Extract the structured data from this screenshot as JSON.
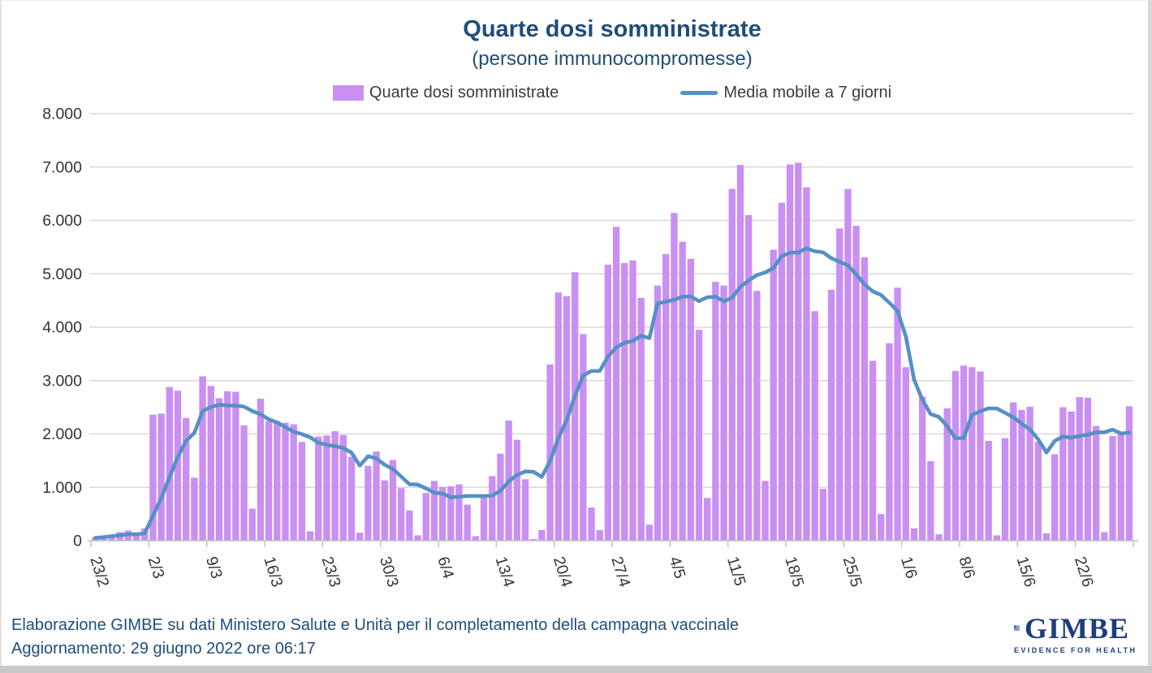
{
  "header": {
    "title": "Quarte dosi somministrate",
    "subtitle": "(persone  immunocompromesse)"
  },
  "legend": {
    "bars_label": "Quarte dosi somministrate",
    "line_label": "Media mobile a 7 giorni"
  },
  "footer": {
    "line1": "Elaborazione GIMBE su dati Ministero Salute e Unità per il completamento della campagna vaccinale",
    "line2": "Aggiornamento: 29 giugno 2022 ore 06:17"
  },
  "logo": {
    "name": "GIMBE",
    "tagline": "EVIDENCE FOR HEALTH"
  },
  "colors": {
    "bar": "#C98FF2",
    "line": "#5690C5",
    "title": "#1F4E79",
    "grid": "#D9D9D9",
    "axis": "#BFBFBF",
    "axis_text": "#333333",
    "logo": "#1F3D7C"
  },
  "chart_data": {
    "type": "bar",
    "title": "Quarte dosi somministrate (persone immunocompromesse)",
    "xlabel": "",
    "ylabel": "",
    "ylim": [
      0,
      8000
    ],
    "grid": "horizontal",
    "legend_position": "top",
    "y_tick_labels": [
      "0",
      "1.000",
      "2.000",
      "3.000",
      "4.000",
      "5.000",
      "6.000",
      "7.000",
      "8.000"
    ],
    "x_tick_labels": [
      "23/2",
      "2/3",
      "9/3",
      "16/3",
      "23/3",
      "30/3",
      "6/4",
      "13/4",
      "20/4",
      "27/4",
      "4/5",
      "11/5",
      "18/5",
      "25/5",
      "1/6",
      "8/6",
      "15/6",
      "22/6"
    ],
    "x_tick_every": 7,
    "dates": [
      "23/2",
      "24/2",
      "25/2",
      "26/2",
      "27/2",
      "28/2",
      "1/3",
      "2/3",
      "3/3",
      "4/3",
      "5/3",
      "6/3",
      "7/3",
      "8/3",
      "9/3",
      "10/3",
      "11/3",
      "12/3",
      "13/3",
      "14/3",
      "15/3",
      "16/3",
      "17/3",
      "18/3",
      "19/3",
      "20/3",
      "21/3",
      "22/3",
      "23/3",
      "24/3",
      "25/3",
      "26/3",
      "27/3",
      "28/3",
      "29/3",
      "30/3",
      "31/3",
      "1/4",
      "2/4",
      "3/4",
      "4/4",
      "5/4",
      "6/4",
      "7/4",
      "8/4",
      "9/4",
      "10/4",
      "11/4",
      "12/4",
      "13/4",
      "14/4",
      "15/4",
      "16/4",
      "17/4",
      "18/4",
      "19/4",
      "20/4",
      "21/4",
      "22/4",
      "23/4",
      "24/4",
      "25/4",
      "26/4",
      "27/4",
      "28/4",
      "29/4",
      "30/4",
      "1/5",
      "2/5",
      "3/5",
      "4/5",
      "5/5",
      "6/5",
      "7/5",
      "8/5",
      "9/5",
      "10/5",
      "11/5",
      "12/5",
      "13/5",
      "14/5",
      "15/5",
      "16/5",
      "17/5",
      "18/5",
      "19/5",
      "20/5",
      "21/5",
      "22/5",
      "23/5",
      "24/5",
      "25/5",
      "26/5",
      "27/5",
      "28/5",
      "29/5",
      "30/5",
      "31/5",
      "1/6",
      "2/6",
      "3/6",
      "4/6",
      "5/6",
      "6/6",
      "7/6",
      "8/6",
      "9/6",
      "10/6",
      "11/6",
      "12/6",
      "13/6",
      "14/6",
      "15/6",
      "16/6",
      "17/6",
      "18/6",
      "19/6",
      "20/6",
      "21/6",
      "22/6",
      "23/6",
      "24/6",
      "25/6",
      "26/6",
      "27/6",
      "28/6"
    ],
    "series": [
      {
        "name": "Quarte dosi somministrate",
        "type": "bar",
        "values": [
          50,
          85,
          115,
          160,
          190,
          125,
          230,
          2360,
          2380,
          2880,
          2810,
          2300,
          1180,
          3080,
          2900,
          2670,
          2800,
          2790,
          2160,
          600,
          2660,
          2240,
          2240,
          2210,
          2180,
          1850,
          175,
          1950,
          1970,
          2050,
          1980,
          1570,
          150,
          1400,
          1670,
          1130,
          1510,
          985,
          565,
          100,
          895,
          1120,
          1005,
          1020,
          1055,
          675,
          85,
          870,
          1210,
          1630,
          2250,
          1890,
          1150,
          30,
          200,
          3300,
          4650,
          4580,
          5030,
          3870,
          620,
          200,
          5170,
          5880,
          5200,
          5250,
          4550,
          300,
          4780,
          5370,
          6140,
          5600,
          5280,
          3950,
          800,
          4850,
          4780,
          6590,
          7040,
          6100,
          4680,
          1120,
          5450,
          6330,
          7050,
          7080,
          6620,
          4300,
          970,
          4700,
          5850,
          6590,
          5900,
          5310,
          3370,
          500,
          3700,
          4740,
          3250,
          230,
          2700,
          1490,
          120,
          2480,
          3180,
          3280,
          3250,
          3170,
          1870,
          100,
          1920,
          2590,
          2450,
          2510,
          1850,
          140,
          1620,
          2500,
          2420,
          2690,
          2680,
          2150,
          160,
          1960,
          2000,
          2520
        ]
      },
      {
        "name": "Media mobile a 7 giorni",
        "type": "line",
        "derivation": "7-day trailing moving average of the daily bar values (partial window over the first 6 days)"
      }
    ]
  }
}
